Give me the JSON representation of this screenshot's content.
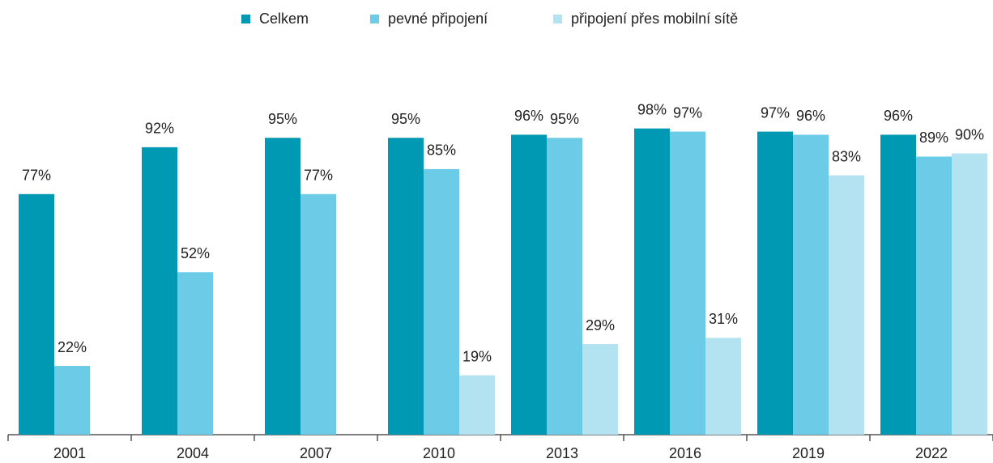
{
  "chart_data": {
    "type": "bar",
    "categories": [
      "2001",
      "2004",
      "2007",
      "2010",
      "2013",
      "2016",
      "2019",
      "2022"
    ],
    "series": [
      {
        "name": "Celkem",
        "color": "#0099b3",
        "values": [
          77,
          92,
          95,
          95,
          96,
          98,
          97,
          96
        ],
        "value_labels": [
          "77%",
          "92%",
          "95%",
          "95%",
          "96%",
          "98%",
          "97%",
          "96%"
        ]
      },
      {
        "name": "pevné připojení",
        "color": "#6ccbe7",
        "values": [
          22,
          52,
          77,
          85,
          95,
          97,
          96,
          89
        ],
        "value_labels": [
          "22%",
          "52%",
          "77%",
          "85%",
          "95%",
          "97%",
          "96%",
          "89%"
        ]
      },
      {
        "name": "připojení přes mobilní sítě",
        "color": "#b3e2f0",
        "values": [
          null,
          null,
          null,
          19,
          29,
          31,
          83,
          90
        ],
        "value_labels": [
          null,
          null,
          null,
          "19%",
          "29%",
          "31%",
          "83%",
          "90%"
        ]
      }
    ],
    "ylim": [
      0,
      100
    ],
    "legend": "top"
  }
}
